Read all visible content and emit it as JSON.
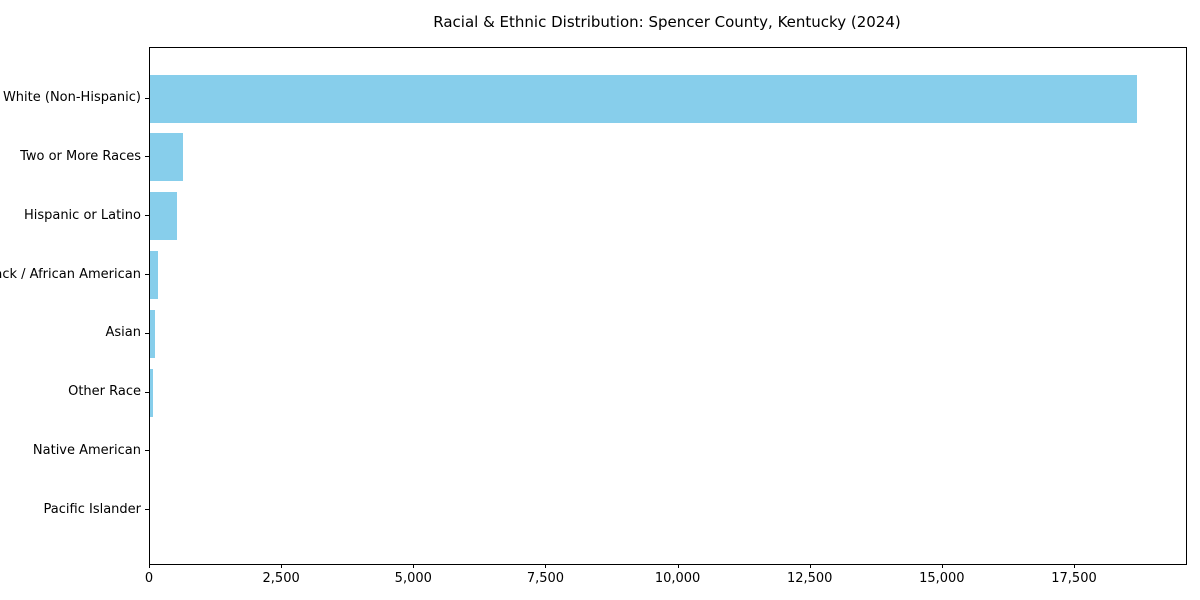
{
  "chart_data": {
    "type": "bar",
    "orientation": "horizontal",
    "title": "Racial & Ethnic Distribution: Spencer County, Kentucky (2024)",
    "categories": [
      "White (Non-Hispanic)",
      "Two or More Races",
      "Hispanic or Latino",
      "Black / African American",
      "Asian",
      "Other Race",
      "Native American",
      "Pacific Islander"
    ],
    "values": [
      18665,
      620,
      515,
      150,
      100,
      60,
      0,
      0
    ],
    "xlabel": "",
    "ylabel": "",
    "xlim": [
      0,
      19600
    ],
    "xticks": [
      0,
      2500,
      5000,
      7500,
      10000,
      12500,
      15000,
      17500
    ],
    "xtick_labels": [
      "0",
      "2,500",
      "5,000",
      "7,500",
      "10,000",
      "12,500",
      "15,000",
      "17,500"
    ],
    "grid": false,
    "legend": null,
    "bar_color": "#87CEEB",
    "axis_color": "#000000",
    "background_color": "#ffffff"
  }
}
